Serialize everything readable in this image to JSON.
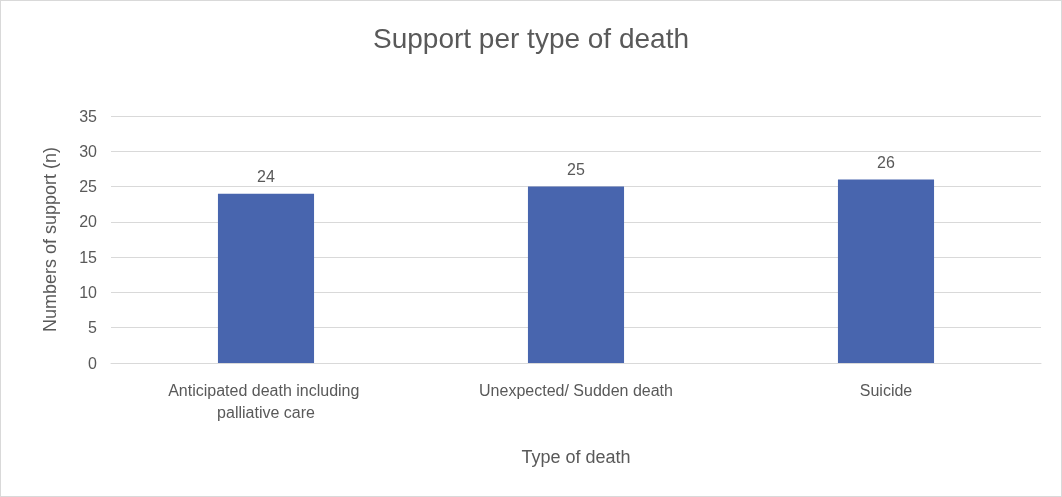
{
  "chart_data": {
    "type": "bar",
    "title": "Support per type of death",
    "xlabel": "Type of death",
    "ylabel": "Numbers of support (n)",
    "categories": [
      "Anticipated death including palliative care",
      "Unexpected/ Sudden death",
      "Suicide"
    ],
    "values": [
      24,
      25,
      26
    ],
    "color": "#4865ae",
    "ylim": [
      0,
      35
    ],
    "yticks": [
      0,
      5,
      10,
      15,
      20,
      25,
      30,
      35
    ],
    "grid": "y",
    "data_labels": true
  }
}
